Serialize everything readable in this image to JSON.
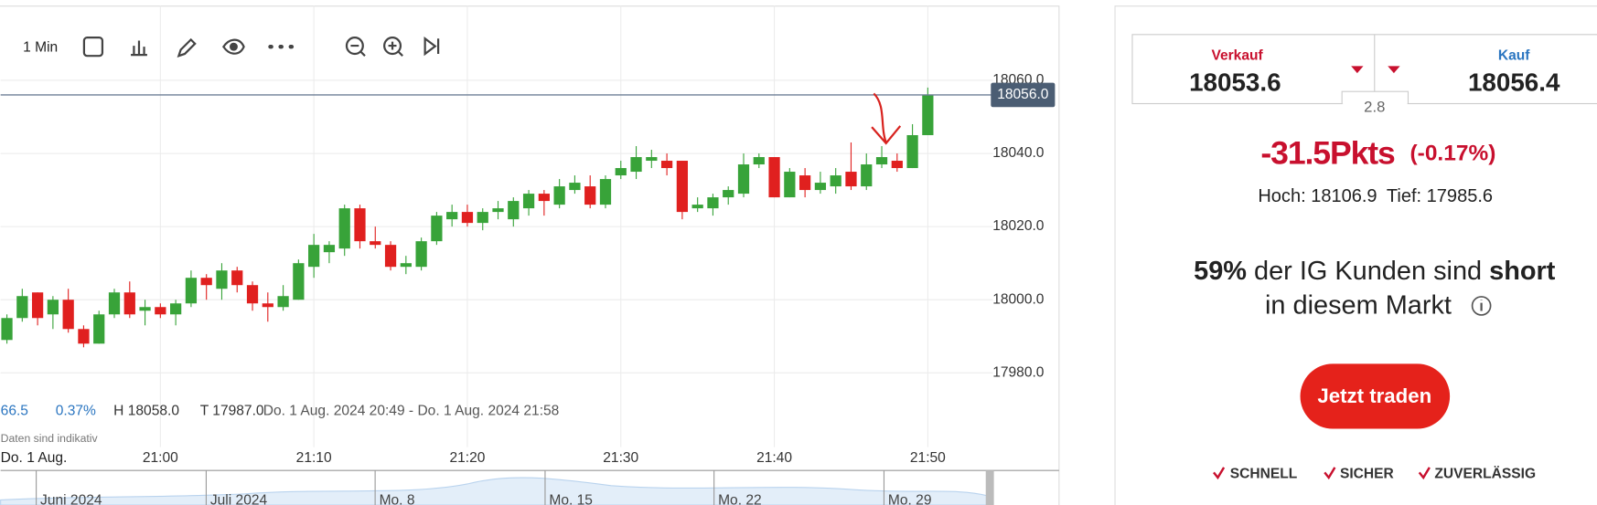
{
  "toolbar": {
    "interval": "1 Min"
  },
  "chart_data": {
    "type": "candlestick",
    "x": [
      -10,
      -9,
      -8,
      -7,
      -6,
      -5,
      -4,
      -3,
      -2,
      -1,
      0,
      1,
      2,
      3,
      4,
      5,
      6,
      7,
      8,
      9,
      10,
      11,
      12,
      13,
      14,
      15,
      16,
      17,
      18,
      19,
      20,
      21,
      22,
      23,
      24,
      25,
      26,
      27,
      28,
      29,
      30,
      31,
      32,
      33,
      34,
      35,
      36,
      37,
      38,
      39,
      40,
      41,
      42,
      43,
      44,
      45,
      46,
      47,
      48,
      49,
      50
    ],
    "open": [
      17989,
      17995,
      18002,
      17996,
      18000,
      17992,
      17988,
      17996,
      18002,
      17997,
      17998,
      17996,
      17999,
      18006,
      18003,
      18008,
      18004,
      17999,
      17998,
      18000,
      18009,
      18013,
      18014,
      18025,
      18016,
      18015,
      18009,
      18009,
      18016,
      18022,
      18024,
      18021,
      18024,
      18022,
      18025,
      18029,
      18026,
      18030,
      18031,
      18026,
      18034,
      18035,
      18038,
      18038,
      18038,
      18025,
      18025,
      18028,
      18029,
      18037,
      18039,
      18028,
      18034,
      18030,
      18031,
      18035,
      18031,
      18037,
      18038,
      18036,
      18045
    ],
    "high": [
      17996,
      18003,
      18002,
      18001,
      18003,
      17993,
      17997,
      18003,
      18005,
      18000,
      17999,
      18000,
      18008,
      18007,
      18010,
      18009,
      18005,
      18002,
      18004,
      18011,
      18018,
      18016,
      18026,
      18026,
      18020,
      18016,
      18012,
      18017,
      18024,
      18026,
      18026,
      18025,
      18027,
      18028,
      18030,
      18030,
      18033,
      18034,
      18034,
      18034,
      18038,
      18042,
      18041,
      18040,
      18038,
      18028,
      18029,
      18031,
      18040,
      18040,
      18039,
      18036,
      18036,
      18035,
      18036,
      18043,
      18040,
      18042,
      18040,
      18048,
      18058
    ],
    "low": [
      17988,
      17994,
      17993,
      17992,
      17991,
      17987,
      17988,
      17995,
      17995,
      17993,
      17995,
      17993,
      17998,
      18000,
      18000,
      18002,
      17997,
      17994,
      17997,
      18000,
      18006,
      18010,
      18012,
      18014,
      18014,
      18008,
      18007,
      18008,
      18015,
      18020,
      18020,
      18019,
      18022,
      18020,
      18023,
      18023,
      18025,
      18029,
      18025,
      18025,
      18033,
      18033,
      18036,
      18034,
      18022,
      18024,
      18023,
      18026,
      18028,
      18036,
      18028,
      18028,
      18028,
      18029,
      18029,
      18030,
      18030,
      18036,
      18035,
      18036,
      18045
    ],
    "close": [
      17995,
      18001,
      17995,
      18000,
      17992,
      17988,
      17996,
      18002,
      17996,
      17998,
      17996,
      17999,
      18006,
      18004,
      18008,
      18004,
      17999,
      17998,
      18001,
      18010,
      18015,
      18015,
      18025,
      18016,
      18015,
      18009,
      18010,
      18016,
      18023,
      18024,
      18021,
      18024,
      18025,
      18027,
      18029,
      18027,
      18031,
      18032,
      18026,
      18033,
      18036,
      18039,
      18039,
      18036,
      18024,
      18026,
      18028,
      18030,
      18037,
      18039,
      18028,
      18035,
      18030,
      18032,
      18034,
      18031,
      18037,
      18039,
      18036,
      18045,
      18056
    ],
    "up_color": "#38a339",
    "down_color": "#e0201f",
    "xlim": [
      -10.41,
      54.24
    ],
    "xticks": [
      {
        "value": 0,
        "label": "21:00"
      },
      {
        "value": 10,
        "label": "21:10"
      },
      {
        "value": 20,
        "label": "21:20"
      },
      {
        "value": 30,
        "label": "21:30"
      },
      {
        "value": 40,
        "label": "21:40"
      },
      {
        "value": 50,
        "label": "21:50"
      }
    ],
    "ylim": [
      17959.72,
      18080.28
    ],
    "yticks": [
      {
        "value": 17980,
        "label": "17980.0"
      },
      {
        "value": 18000,
        "label": "18000.0"
      },
      {
        "value": 18020,
        "label": "18020.0"
      },
      {
        "value": 18040,
        "label": "18040.0"
      },
      {
        "value": 18060,
        "label": "18060.0"
      }
    ],
    "grid": true,
    "current_price": {
      "value": 18056,
      "label": "18056.0"
    },
    "stats": [
      "66.5",
      "0.37%",
      "H 18058.0",
      "T 17987.0",
      "Do. 1 Aug. 2024 20:49 - Do. 1 Aug. 2024 21:58"
    ],
    "note": "Daten sind indikativ",
    "date_label": "Do. 1 Aug.",
    "navigator_labels": [
      "Juni 2024",
      "Juli 2024",
      "Mo. 8",
      "Mo. 15",
      "Mo. 22",
      "Mo. 29"
    ]
  },
  "panel": {
    "sell_label": "Verkauf",
    "sell_price": "18053.6",
    "buy_label": "Kauf",
    "buy_price": "18056.4",
    "spread": "2.8",
    "change": "-31.5Pkts",
    "change_pct": "(-0.17%)",
    "high": "Hoch: 18106.9",
    "low": "Tief: 17985.6",
    "sentiment_pct": "59%",
    "sentiment_text": "der IG Kunden sind",
    "sentiment_side": "short",
    "sentiment_text2": "in diesem Markt",
    "cta": "Jetzt traden",
    "features": [
      "SCHNELL",
      "SICHER",
      "ZUVERLÄSSIG"
    ]
  }
}
